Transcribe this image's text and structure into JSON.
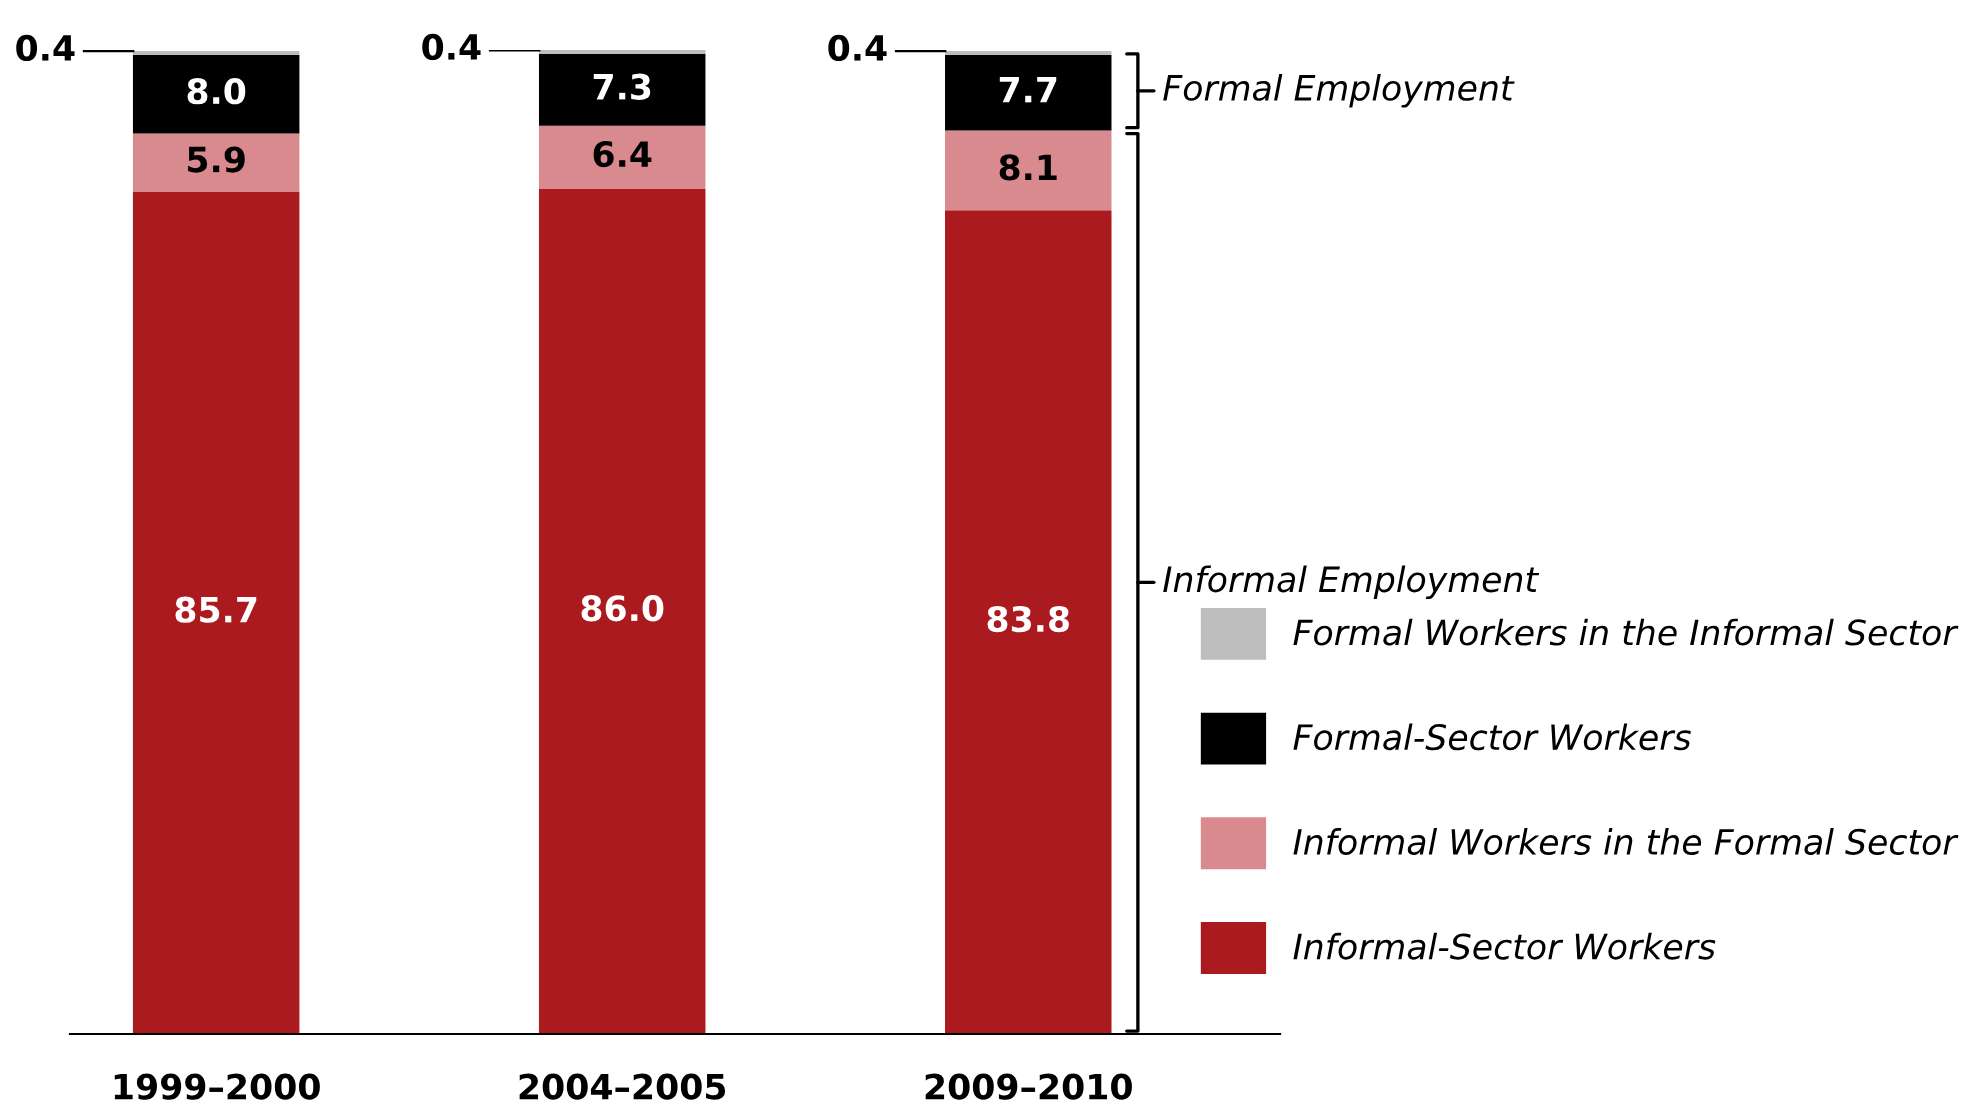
{
  "chart_data": {
    "type": "bar",
    "stacked": true,
    "legend": "right",
    "grid": false,
    "categories": [
      "1999–2000",
      "2004–2005",
      "2009–2010"
    ],
    "series": [
      {
        "name": "Informal-Sector Workers",
        "color": "#ab1a1f",
        "values": [
          85.7,
          86.0,
          83.8
        ],
        "value_labels": [
          "85.7",
          "86.0",
          "83.8"
        ]
      },
      {
        "name": "Informal Workers in the Formal Sector",
        "color": "#d98a8e",
        "values": [
          5.9,
          6.4,
          8.1
        ],
        "value_labels": [
          "5.9",
          "6.4",
          "8.1"
        ]
      },
      {
        "name": "Formal-Sector Workers",
        "color": "#000000",
        "values": [
          8.0,
          7.3,
          7.7
        ],
        "value_labels": [
          "8.0",
          "7.3",
          "7.7"
        ]
      },
      {
        "name": "Formal Workers in the Informal Sector",
        "color": "#bdbdbd",
        "values": [
          0.4,
          0.4,
          0.4
        ],
        "value_labels": [
          "0.4",
          "0.4",
          "0.4"
        ]
      }
    ],
    "annotations": [
      "Formal Employment",
      "Informal Employment"
    ]
  }
}
